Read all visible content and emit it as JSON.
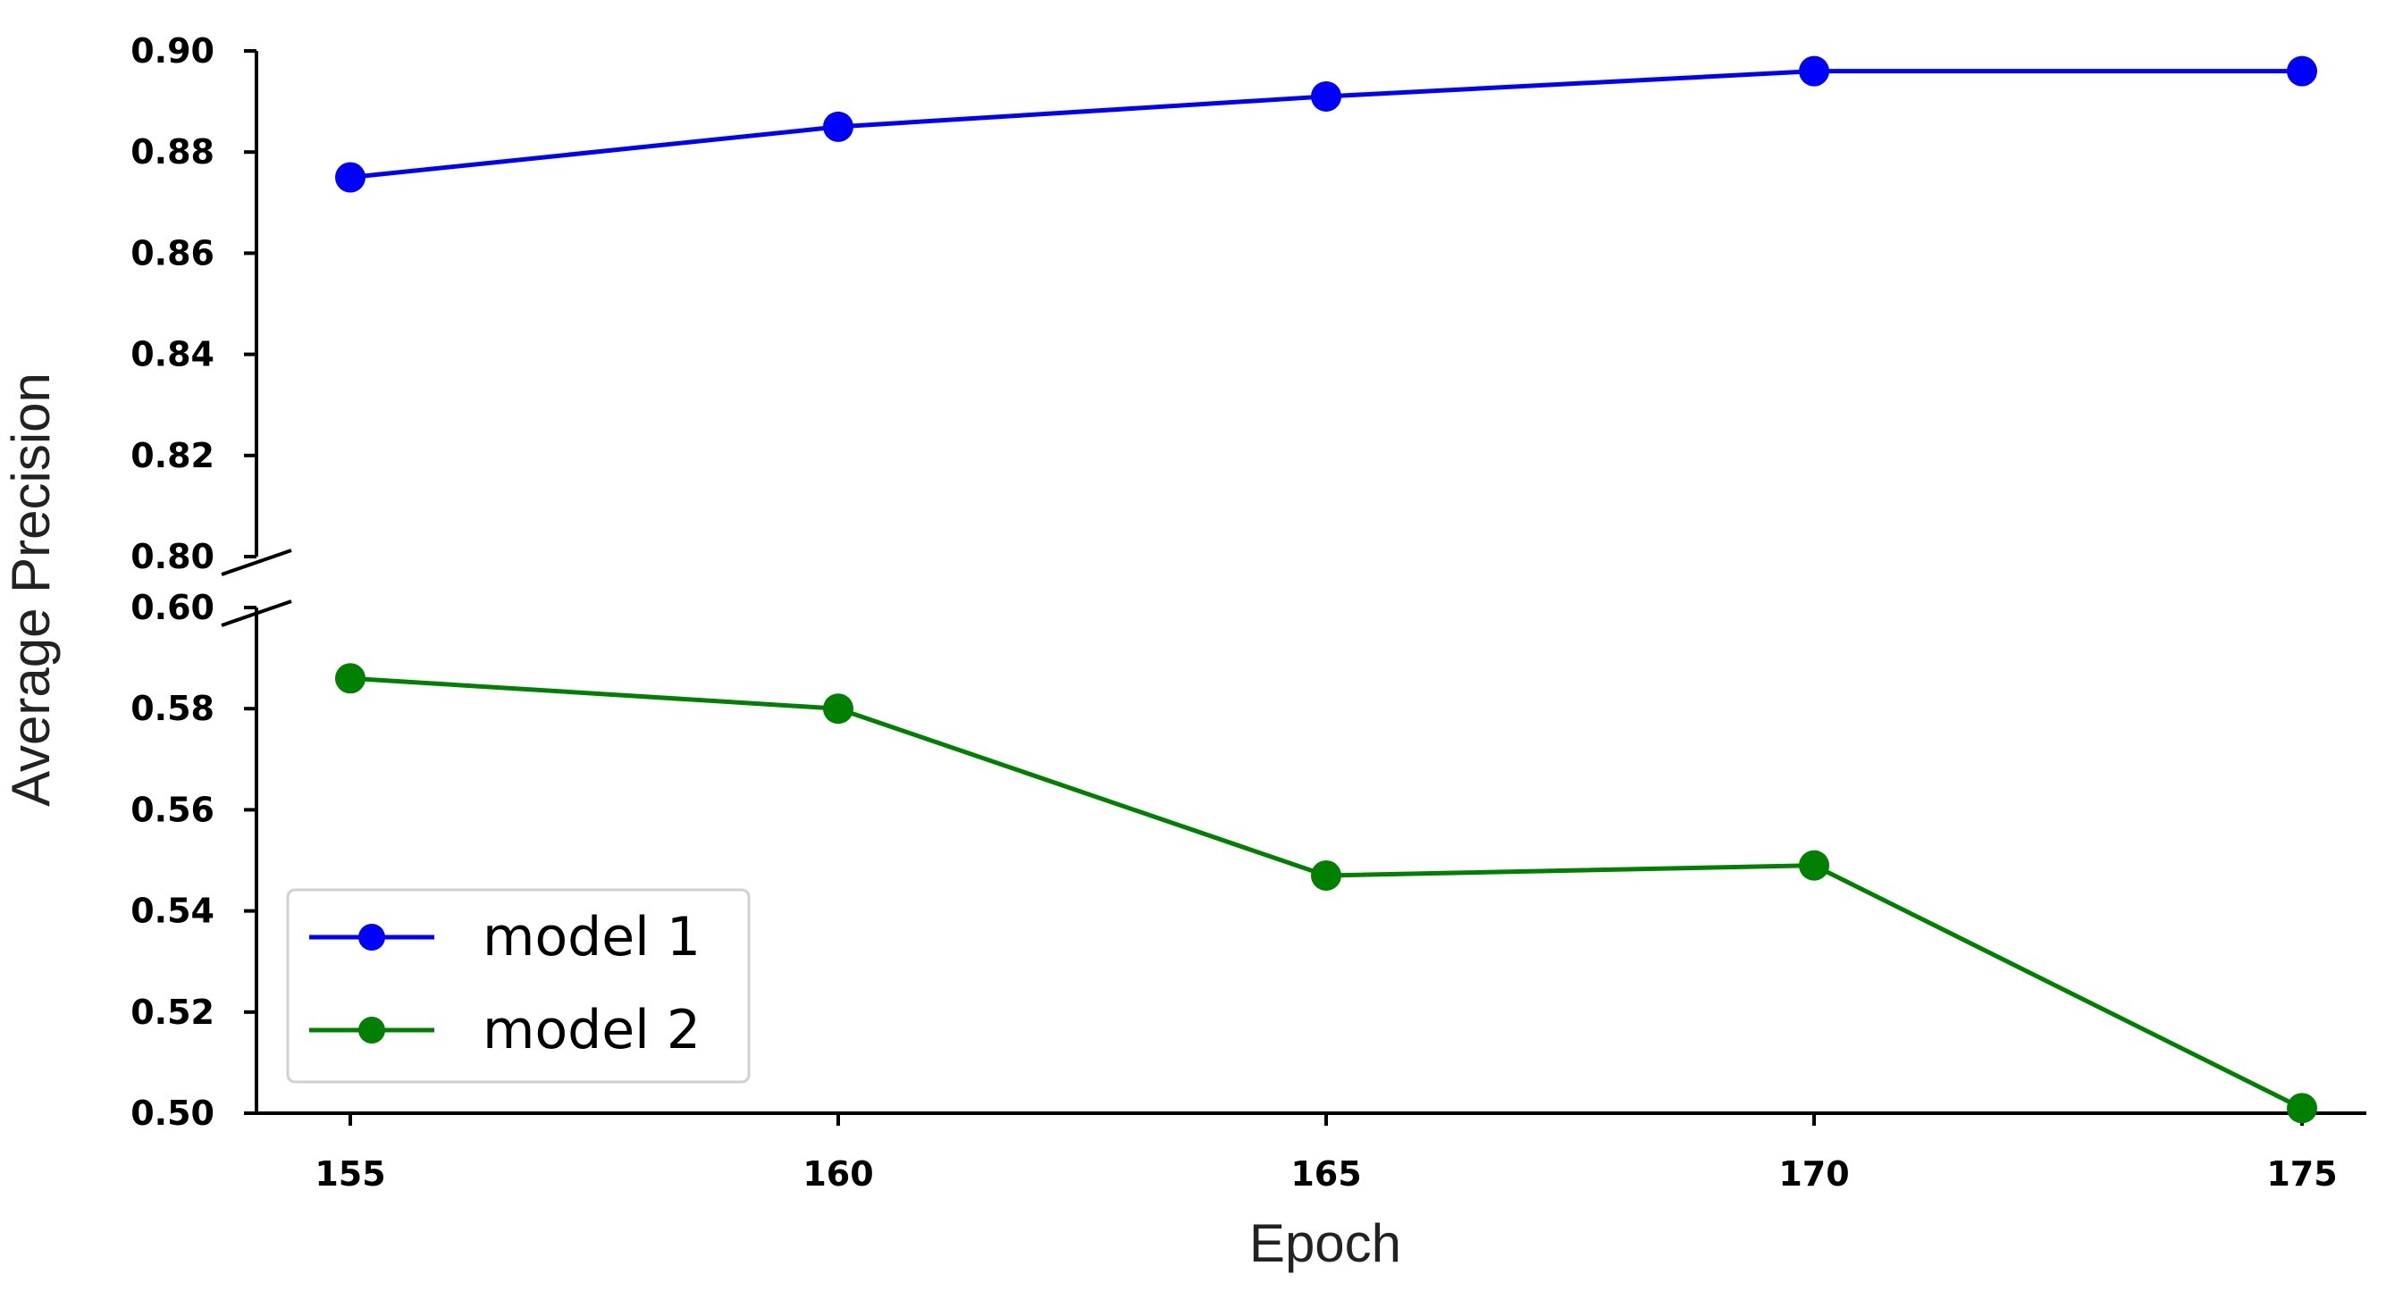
{
  "chart_data": {
    "type": "line",
    "title": "",
    "xlabel": "Epoch",
    "ylabel": "Average Precision",
    "x": [
      155,
      160,
      165,
      170,
      175
    ],
    "x_ticks": [
      "155",
      "160",
      "165",
      "170",
      "175"
    ],
    "y_axis_break": true,
    "ylim_upper": [
      0.8,
      0.9
    ],
    "ylim_lower": [
      0.5,
      0.6
    ],
    "y_ticks_upper": [
      "0.80",
      "0.82",
      "0.84",
      "0.86",
      "0.88",
      "0.90"
    ],
    "y_ticks_lower": [
      "0.50",
      "0.52",
      "0.54",
      "0.56",
      "0.58",
      "0.60"
    ],
    "grid": false,
    "legend_position": "bottom-left",
    "series": [
      {
        "name": "model 1",
        "color": "#0000ff",
        "values": [
          0.875,
          0.885,
          0.891,
          0.896,
          0.896
        ]
      },
      {
        "name": "model 2",
        "color": "#008000",
        "values": [
          0.586,
          0.58,
          0.547,
          0.549,
          0.501
        ]
      }
    ]
  }
}
